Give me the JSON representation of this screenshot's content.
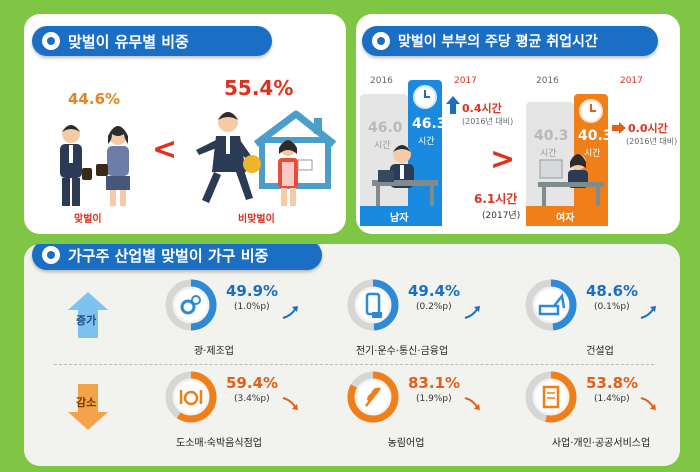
{
  "colors": {
    "background": "#7ec644",
    "header": "#1a6fc4",
    "red": "#e0301e",
    "orange": "#f07f1a",
    "blue": "#2d8ad7"
  },
  "section1": {
    "title": "맞벌이 유무별 비중"
  },
  "section2": {
    "title": "맞벌이 부부의 주당 평균 취업시간"
  },
  "section3": {
    "title": "가구주 산업별 맞벌이 가구 비중"
  },
  "chart_data": [
    {
      "type": "pie",
      "title": "맞벌이 유무별 비중",
      "categories": [
        "맞벌이",
        "비맞벌이"
      ],
      "values": [
        44.6,
        55.4
      ],
      "value_labels": [
        "44.6%",
        "55.4%"
      ],
      "compare_symbol": "<"
    },
    {
      "type": "bar",
      "title": "맞벌이 부부의 주당 평균 취업시간",
      "categories": [
        "남자",
        "여자"
      ],
      "series": [
        {
          "name": "2016",
          "values": [
            46.0,
            40.3
          ],
          "labels": [
            "46.0",
            "40.3"
          ]
        },
        {
          "name": "2017",
          "values": [
            46.3,
            40.3
          ],
          "labels": [
            "46.3",
            "40.3"
          ]
        }
      ],
      "unit": "시간",
      "changes": [
        {
          "value": "0.4시간",
          "note": "(2016년 대비)"
        },
        {
          "value": "0.0시간",
          "note": "(2016년 대비)"
        }
      ],
      "gap": {
        "value": "6.1시간",
        "note": "(2017년)"
      },
      "compare_symbol": ">"
    },
    {
      "type": "table",
      "title": "가구주 산업별 맞벌이 가구 비중",
      "groups": [
        {
          "label": "증가",
          "items": [
            {
              "name": "광·제조업",
              "value": 49.9,
              "pct": "49.9%",
              "change": "(1.0%p)"
            },
            {
              "name": "전기·운수·통신·금융업",
              "value": 49.4,
              "pct": "49.4%",
              "change": "(0.2%p)"
            },
            {
              "name": "건설업",
              "value": 48.6,
              "pct": "48.6%",
              "change": "(0.1%p)"
            }
          ]
        },
        {
          "label": "감소",
          "items": [
            {
              "name": "도소매·숙박음식점업",
              "value": 59.4,
              "pct": "59.4%",
              "change": "(3.4%p)"
            },
            {
              "name": "농림어업",
              "value": 83.1,
              "pct": "83.1%",
              "change": "(1.9%p)"
            },
            {
              "name": "사업·개인·공공서비스업",
              "value": 53.8,
              "pct": "53.8%",
              "change": "(1.4%p)"
            }
          ]
        }
      ]
    }
  ]
}
